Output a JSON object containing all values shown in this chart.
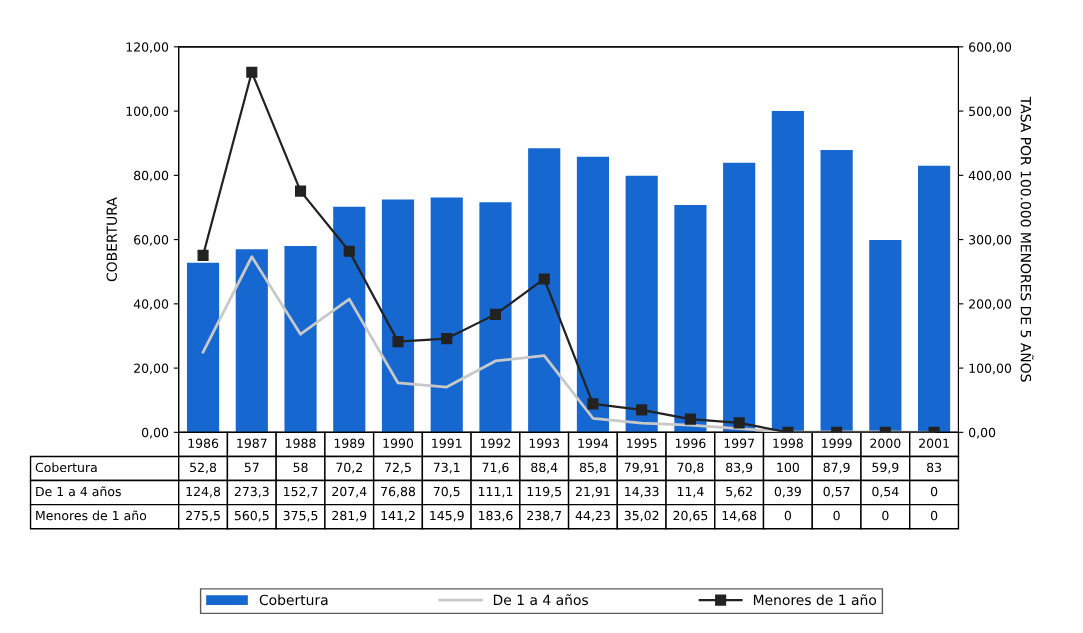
{
  "chart_data": {
    "type": "bar",
    "ylabel": "COBERTURA",
    "y2label": "TASA POR 100.000 MENORES DE 5 AÑOS",
    "categories": [
      "1986",
      "1987",
      "1988",
      "1989",
      "1990",
      "1991",
      "1992",
      "1993",
      "1994",
      "1995",
      "1996",
      "1997",
      "1998",
      "1999",
      "2000",
      "2001"
    ],
    "series": [
      {
        "name": "Cobertura",
        "color": "#1668d0",
        "values": [
          52.8,
          57,
          58,
          70.2,
          72.5,
          73.1,
          71.6,
          88.4,
          85.8,
          79.91,
          70.8,
          83.9,
          100,
          87.9,
          59.9,
          83
        ],
        "value_labels": [
          "52,8",
          "57",
          "58",
          "70,2",
          "72,5",
          "73,1",
          "71,6",
          "88,4",
          "85,8",
          "79,91",
          "70,8",
          "83,9",
          "100",
          "87,9",
          "59,9",
          "83"
        ]
      },
      {
        "name": "De 1 a 4 años",
        "type": "line",
        "axis": "y2",
        "color": "#c8c8c8",
        "marker": "none",
        "values": [
          124.8,
          273.3,
          152.7,
          207.4,
          76.88,
          70.5,
          111.1,
          119.5,
          21.91,
          14.33,
          11.4,
          5.62,
          0.39,
          0.57,
          0.54,
          0
        ],
        "value_labels": [
          "124,8",
          "273,3",
          "152,7",
          "207,4",
          "76,88",
          "70,5",
          "111,1",
          "119,5",
          "21,91",
          "14,33",
          "11,4",
          "5,62",
          "0,39",
          "0,57",
          "0,54",
          "0"
        ]
      },
      {
        "name": "Menores de 1 año",
        "type": "line",
        "axis": "y2",
        "color": "#222222",
        "marker": "square",
        "values": [
          275.5,
          560.5,
          375.5,
          281.9,
          141.2,
          145.9,
          183.6,
          238.7,
          44.23,
          35.02,
          20.65,
          14.68,
          0,
          0,
          0,
          0
        ],
        "value_labels": [
          "275,5",
          "560,5",
          "375,5",
          "281,9",
          "141,2",
          "145,9",
          "183,6",
          "238,7",
          "44,23",
          "35,02",
          "20,65",
          "14,68",
          "0",
          "0",
          "0",
          "0"
        ]
      }
    ],
    "ylim": [
      0,
      120
    ],
    "yticks": [
      {
        "value": 0,
        "label": "0,00"
      },
      {
        "value": 20,
        "label": "20,00"
      },
      {
        "value": 40,
        "label": "40,00"
      },
      {
        "value": 60,
        "label": "60,00"
      },
      {
        "value": 80,
        "label": "80,00"
      },
      {
        "value": 100,
        "label": "100,00"
      },
      {
        "value": 120,
        "label": "120,00"
      }
    ],
    "y2lim": [
      0,
      600
    ],
    "y2ticks": [
      {
        "value": 0,
        "label": "0,00"
      },
      {
        "value": 100,
        "label": "100,00"
      },
      {
        "value": 200,
        "label": "200,00"
      },
      {
        "value": 300,
        "label": "300,00"
      },
      {
        "value": 400,
        "label": "400,00"
      },
      {
        "value": 500,
        "label": "500,00"
      },
      {
        "value": 600,
        "label": "600,00"
      }
    ],
    "grid": false,
    "legend": "bottom"
  }
}
